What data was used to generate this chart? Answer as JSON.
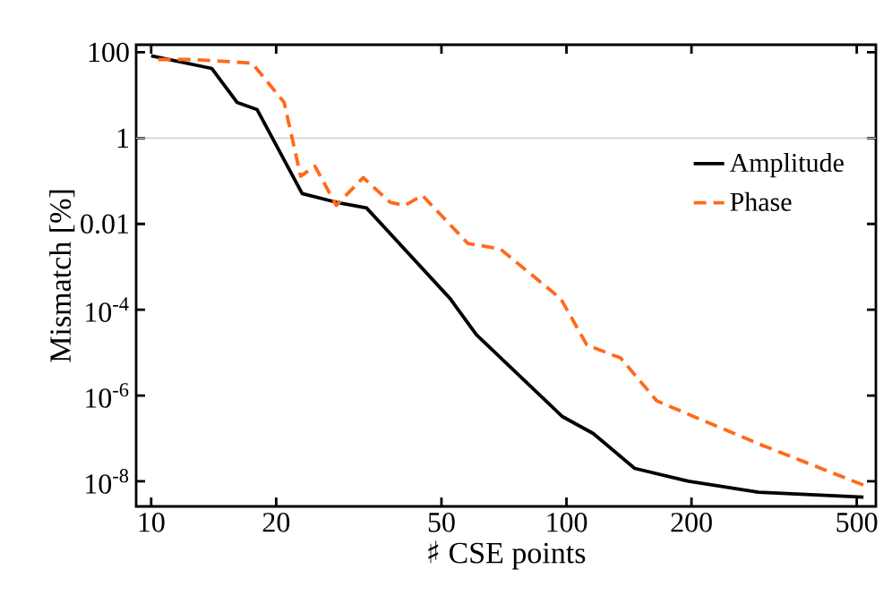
{
  "chart_data": {
    "type": "line",
    "xlabel": "♯ CSE points",
    "ylabel": "Mismatch [%]",
    "log": "xy",
    "grid": false,
    "legend": "right",
    "xlim": [
      9.2,
      556
    ],
    "ylim": [
      2.6e-09,
      150
    ],
    "xticks": [
      10,
      20,
      50,
      100,
      200,
      500
    ],
    "yticks": [
      100,
      1,
      0.01,
      {
        "value": 0.0001,
        "label": "10$^{-4}$"
      },
      {
        "value": 1e-06,
        "label": "10$^{-6}$"
      },
      {
        "value": 1e-08,
        "label": "10$^{-8}$"
      }
    ],
    "ref_lines": [
      {
        "axis": "y",
        "value": 1,
        "color": "#c8c8c8"
      }
    ],
    "series": [
      {
        "name": "Amplitude",
        "color": "#000000",
        "line_style": "solid",
        "x": [
          10,
          14.0,
          16.1,
          18.0,
          23.1,
          27.9,
          33.0,
          52.5,
          60.7,
          97.9,
          116,
          146,
          197,
          290,
          519
        ],
        "values": [
          83,
          42,
          6.8,
          4.6,
          0.051,
          0.032,
          0.0236,
          0.00018,
          2.6e-05,
          3.2e-07,
          1.3e-07,
          2e-08,
          1e-08,
          5.6e-09,
          4.3e-09
        ]
      },
      {
        "name": "Phase",
        "color": "#ff6a1a",
        "line_style": "dashed",
        "x": [
          10.4,
          12.6,
          17.5,
          20.9,
          22.9,
          24.8,
          27.9,
          32.4,
          37.6,
          40.8,
          45.0,
          57.9,
          69.3,
          96.9,
          112,
          135,
          165,
          290,
          531
        ],
        "values": [
          68,
          68,
          56,
          6.8,
          0.13,
          0.22,
          0.027,
          0.12,
          0.032,
          0.027,
          0.046,
          0.0035,
          0.0026,
          0.00018,
          1.5e-05,
          7.5e-06,
          7.5e-07,
          7.5e-08,
          7.5e-09
        ]
      }
    ]
  }
}
